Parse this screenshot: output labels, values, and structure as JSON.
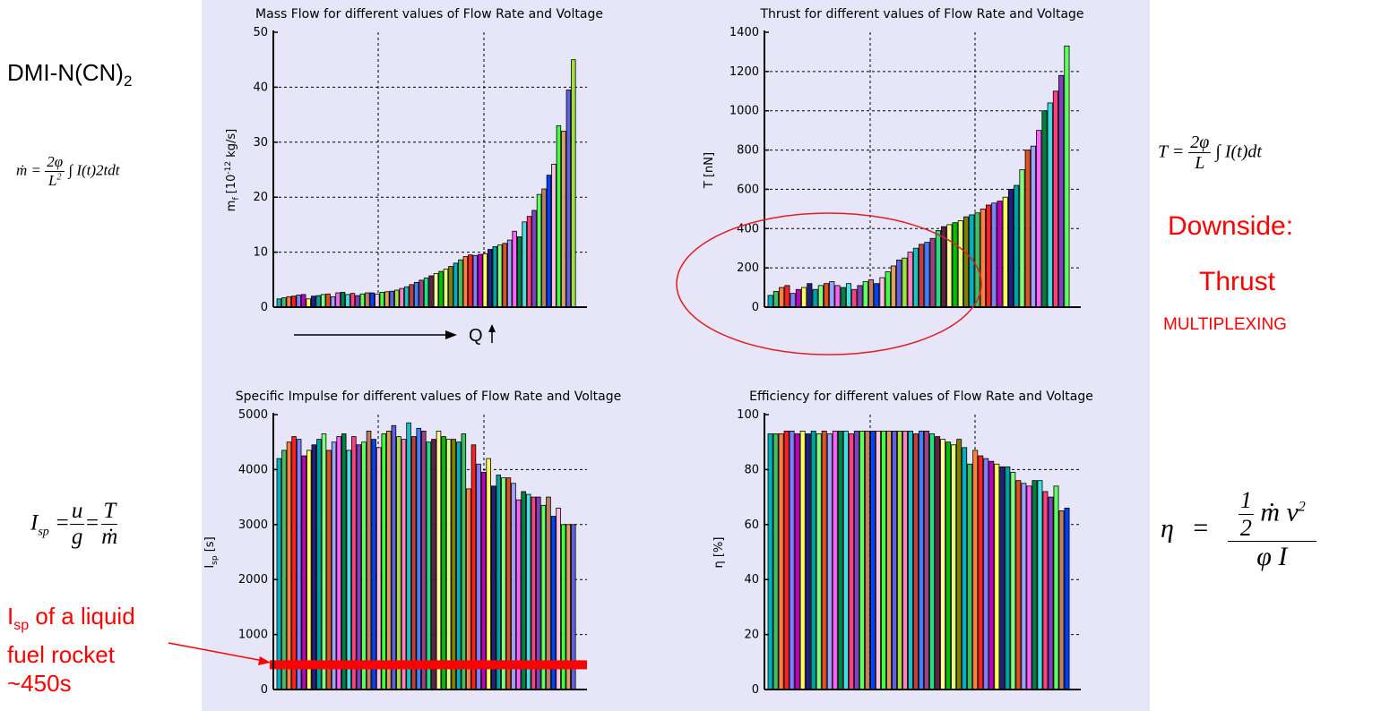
{
  "left_title": {
    "main": "DMI-N(CN)",
    "sub": "2"
  },
  "formulas": {
    "mdot": {
      "lhs": "ṁ =",
      "num": "2φ",
      "den_base": "L",
      "den_sup": "2",
      "rhs": "∫ I(t)2tdt"
    },
    "thrust": {
      "lhs": "T =",
      "num": "2φ",
      "den": "L",
      "rhs": "∫ I(t)dt"
    },
    "isp": {
      "lhs_base": "I",
      "lhs_sub": "sp",
      "eq": "=",
      "f1_num": "u",
      "f1_den": "g",
      "f2_num": "T",
      "f2_den": "ṁ"
    },
    "eta": {
      "lhs": "η",
      "eq": "=",
      "half_num": "1",
      "half_den": "2",
      "num_rest": "ṁ v",
      "num_sup": "2",
      "den": "φ I"
    }
  },
  "annotations": {
    "downside": "Downside:",
    "thrust": "Thrust",
    "multiplexing": "MULTIPLEXING",
    "q_label": "Q",
    "isp_note_base": "I",
    "isp_note_sub": "sp",
    "isp_note_rest": " of a liquid",
    "isp_note_line2": "fuel rocket",
    "isp_note_line3": "~450s"
  },
  "colors": {
    "panel": "#e6e6f8",
    "accent_red": "#ff0000"
  },
  "chart_data": [
    {
      "type": "bar",
      "title": "Mass Flow for different values of Flow Rate and Voltage",
      "ylabel_base": "m",
      "ylabel_sub": "f",
      "ylabel_rest": " [10",
      "ylabel_sup": "-12",
      "ylabel_end": " kg/s]",
      "ylim": [
        0,
        50
      ],
      "yticks": [
        "0",
        "10",
        "20",
        "30",
        "40",
        "50"
      ],
      "grid": "dashed",
      "values": [
        1.5,
        1.7,
        1.9,
        2.0,
        2.2,
        2.3,
        1.5,
        2.0,
        2.1,
        2.3,
        2.4,
        1.9,
        2.6,
        2.7,
        2.3,
        2.5,
        2.1,
        2.4,
        2.6,
        2.6,
        2.4,
        2.7,
        2.8,
        2.9,
        3.1,
        3.4,
        3.7,
        4.1,
        4.5,
        4.9,
        5.3,
        5.7,
        6.1,
        6.5,
        6.9,
        7.4,
        8.0,
        8.6,
        9.2,
        9.5,
        9.4,
        9.6,
        9.7,
        10.5,
        11.0,
        11.3,
        11.6,
        12.2,
        13.8,
        12.8,
        15.5,
        16.5,
        17.6,
        20.5,
        21.5,
        24.0,
        26.0,
        33.0,
        32.0,
        39.5,
        45.0
      ]
    },
    {
      "type": "bar",
      "title": "Thrust for different values of Flow Rate and Voltage",
      "ylabel": "T [nN]",
      "ylim": [
        0,
        1400
      ],
      "yticks": [
        "0",
        "200",
        "400",
        "600",
        "800",
        "1000",
        "1200",
        "1400"
      ],
      "grid": "dashed",
      "values": [
        60,
        80,
        100,
        110,
        70,
        90,
        100,
        120,
        90,
        110,
        120,
        130,
        110,
        100,
        120,
        90,
        110,
        130,
        140,
        120,
        150,
        180,
        210,
        240,
        250,
        280,
        300,
        320,
        330,
        350,
        390,
        410,
        420,
        430,
        440,
        460,
        470,
        480,
        500,
        520,
        530,
        540,
        560,
        600,
        620,
        700,
        800,
        820,
        900,
        1000,
        1040,
        1100,
        1180,
        1330
      ]
    },
    {
      "type": "bar",
      "title": "Specific Impulse for different values of Flow Rate and Voltage",
      "ylabel_base": "I",
      "ylabel_sub": "sp",
      "ylabel_end": " [s]",
      "ylim": [
        0,
        5000
      ],
      "yticks": [
        "0",
        "1000",
        "2000",
        "3000",
        "4000",
        "5000"
      ],
      "grid": "dashed",
      "reference_line": 450,
      "values": [
        4200,
        4350,
        4500,
        4600,
        4550,
        4250,
        4350,
        4450,
        4550,
        4650,
        4350,
        4500,
        4600,
        4650,
        4350,
        4600,
        4450,
        4500,
        4700,
        4550,
        4400,
        4650,
        4700,
        4800,
        4600,
        4550,
        4850,
        4600,
        4750,
        4700,
        4500,
        4550,
        4700,
        4600,
        4550,
        4550,
        4500,
        4650,
        3650,
        4450,
        4100,
        3950,
        4200,
        3700,
        3900,
        3850,
        3850,
        3750,
        3450,
        3600,
        3550,
        3500,
        3500,
        3350,
        3500,
        3150,
        3300,
        3000,
        3000,
        3000
      ]
    },
    {
      "type": "bar",
      "title": "Efficiency for different values of Flow Rate and Voltage",
      "ylabel": "η [%]",
      "ylim": [
        0,
        100
      ],
      "yticks": [
        "0",
        "20",
        "40",
        "60",
        "80",
        "100"
      ],
      "grid": "dashed",
      "values": [
        93,
        93,
        93,
        94,
        94,
        93,
        94,
        93,
        94,
        93,
        94,
        93,
        94,
        94,
        94,
        93,
        94,
        94,
        94,
        94,
        94,
        94,
        94,
        94,
        94,
        94,
        94,
        93,
        94,
        94,
        93,
        92,
        91,
        90,
        89,
        91,
        88,
        82,
        87,
        85,
        84,
        83,
        82,
        81,
        81,
        79,
        76,
        75,
        74,
        76,
        76,
        72,
        70,
        74,
        65,
        66
      ]
    }
  ]
}
